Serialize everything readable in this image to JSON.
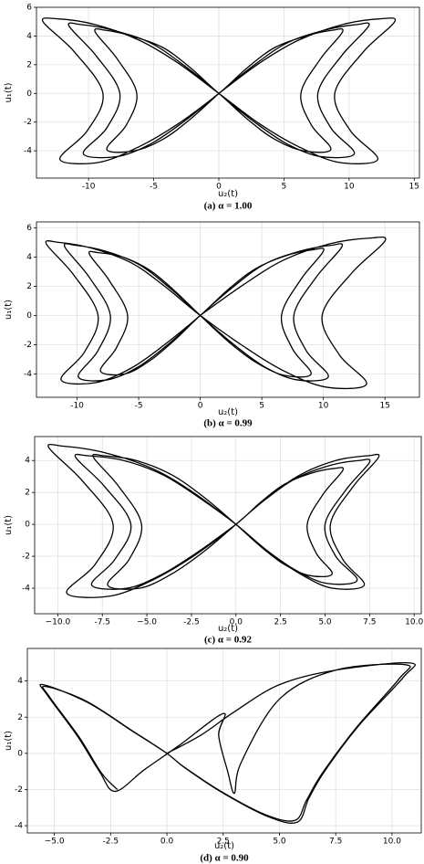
{
  "chart_data": [
    {
      "type": "line",
      "xlabel": "u₂(t)",
      "ylabel": "u₁(t)",
      "caption": "(a) α = 1.00",
      "color": "#000000",
      "grid": true,
      "xlim": [
        -14,
        15.4
      ],
      "ylim": [
        -5.9,
        6.0
      ],
      "xticks": [
        -10,
        -5,
        0,
        5,
        10,
        15
      ],
      "yticks": [
        -4,
        -2,
        0,
        2,
        4,
        6
      ],
      "x": [
        0,
        3.1,
        6.1,
        9.5,
        12.4,
        13.5,
        11.1,
        8.9,
        10.1,
        12.2,
        9.2,
        6.1,
        3.1,
        0,
        -3.1,
        -6.1,
        -9.5,
        -12.4,
        -13.5,
        -11.1,
        -8.9,
        -10.1,
        -12.2,
        -9.2,
        -6.1,
        -3.1,
        0,
        2.2,
        4.3,
        6.7,
        8.7,
        9.5,
        7.8,
        6.3,
        7.1,
        8.6,
        6.5,
        4.3,
        2.2,
        0,
        -2.6,
        -5.2,
        -8.1,
        -10.6,
        -11.5,
        -9.4,
        -7.6,
        -8.6,
        -10.4,
        -7.8,
        -5.2,
        -2.6,
        0,
        2.6,
        5.2,
        8.1,
        10.6,
        11.5,
        9.4,
        7.6,
        8.6,
        10.4,
        7.8,
        5.2,
        2.6,
        0,
        -2.2,
        -4.3,
        -6.7,
        -8.7,
        -9.5,
        -7.8,
        -6.3,
        -7.1,
        -8.6,
        -6.5,
        -4.3,
        -2.2,
        0
      ],
      "values": [
        0,
        2.1,
        3.7,
        4.8,
        5.2,
        5.0,
        2.9,
        0,
        -2.6,
        -4.6,
        -4.8,
        -3.7,
        -2.1,
        0,
        2.1,
        3.7,
        4.8,
        5.2,
        5.0,
        2.9,
        0,
        -2.6,
        -4.6,
        -4.8,
        -3.7,
        -2.1,
        0,
        1.8,
        3.2,
        4.0,
        4.4,
        4.3,
        2.4,
        0,
        -2.2,
        -3.9,
        -4.0,
        -3.2,
        -1.8,
        0,
        1.9,
        3.5,
        4.4,
        4.8,
        4.7,
        2.6,
        0,
        -2.4,
        -4.2,
        -4.4,
        -3.5,
        -1.9,
        0,
        1.9,
        3.5,
        4.4,
        4.8,
        4.7,
        2.6,
        0,
        -2.4,
        -4.2,
        -4.4,
        -3.5,
        -1.9,
        0,
        1.8,
        3.2,
        4.0,
        4.4,
        4.3,
        2.4,
        0,
        -2.2,
        -3.9,
        -4.0,
        -3.2,
        -1.8,
        0
      ]
    },
    {
      "type": "line",
      "xlabel": "u₂(t)",
      "ylabel": "u₁(t)",
      "caption": "(b) α = 0.99",
      "color": "#000000",
      "grid": true,
      "xlim": [
        -13.3,
        17.8
      ],
      "ylim": [
        -5.6,
        6.4
      ],
      "xticks": [
        -10,
        -5,
        0,
        5,
        10,
        15
      ],
      "yticks": [
        -4,
        -2,
        0,
        2,
        4,
        6
      ],
      "x": [
        0,
        3.5,
        6.8,
        10.5,
        13.8,
        15,
        12.3,
        9.9,
        11.3,
        13.5,
        10.2,
        6.8,
        3.5,
        0,
        -2.9,
        -5.6,
        -8.8,
        -11.5,
        -12.5,
        -10.3,
        -8.3,
        -9.4,
        -11.3,
        -8.5,
        -5.6,
        -2.9,
        0,
        2.3,
        4.5,
        7.0,
        9.2,
        10,
        8.2,
        6.6,
        7.5,
        9,
        6.8,
        4.5,
        2.3,
        0,
        -2.1,
        -4.1,
        -6.3,
        -8.3,
        -9,
        -7.4,
        -5.9,
        -6.8,
        -8.1,
        -6.1,
        -4.1,
        -2.1,
        0,
        2.6,
        5.2,
        8.1,
        10.6,
        11.5,
        9.4,
        7.6,
        8.6,
        10.4,
        7.8,
        5.2,
        2.6,
        0,
        -2.5,
        -5.0,
        -7.7,
        -10.1,
        -11,
        -9.0,
        -7.3,
        -8.3,
        -9.9,
        -7.5,
        -5.0,
        -2.5,
        0
      ],
      "values": [
        0,
        2.1,
        3.8,
        4.9,
        5.3,
        5.1,
        2.9,
        0,
        -2.7,
        -4.7,
        -4.9,
        -3.8,
        -2.1,
        0,
        2.0,
        3.6,
        4.6,
        5.0,
        4.9,
        2.8,
        0,
        -2.5,
        -4.4,
        -4.6,
        -3.6,
        -2.0,
        0,
        1.8,
        3.2,
        4.1,
        4.5,
        4.4,
        2.5,
        0,
        -2.3,
        -4.0,
        -4.1,
        -3.2,
        -1.8,
        0,
        1.7,
        3.1,
        4.0,
        4.3,
        4.2,
        2.4,
        0,
        -2.2,
        -3.8,
        -4.0,
        -3.1,
        -1.7,
        0,
        1.9,
        3.5,
        4.4,
        4.8,
        4.7,
        2.6,
        0,
        -2.4,
        -4.2,
        -4.4,
        -3.5,
        -1.9,
        0,
        1.9,
        3.5,
        4.4,
        4.8,
        4.7,
        2.6,
        0,
        -2.4,
        -4.2,
        -4.4,
        -3.5,
        -1.9,
        0
      ]
    },
    {
      "type": "line",
      "xlabel": "u₂(t)",
      "ylabel": "u₁(t)",
      "caption": "(c) α = 0.92",
      "color": "#000000",
      "grid": true,
      "xlim": [
        -11.3,
        10.4
      ],
      "ylim": [
        -5.6,
        5.5
      ],
      "xticks": [
        {
          "value": -10,
          "label": "−10.0"
        },
        -7.5,
        {
          "value": -5,
          "label": "−5.0"
        },
        -2.5,
        {
          "value": 0,
          "label": "0.0"
        },
        2.5,
        {
          "value": 5,
          "label": "5.0"
        },
        7.5,
        {
          "value": 10,
          "label": "10.0"
        }
      ],
      "yticks": [
        -4,
        -2,
        0,
        2,
        4
      ],
      "x": [
        0,
        1.7,
        3.4,
        5.3,
        6.9,
        7.5,
        6.2,
        5.0,
        5.6,
        6.8,
        5.1,
        3.4,
        1.7,
        0,
        -2.4,
        -4.7,
        -7.4,
        -9.7,
        -10.5,
        -8.6,
        -6.9,
        -7.9,
        -9.5,
        -7.1,
        -4.7,
        -2.4,
        0,
        1.4,
        2.7,
        4.2,
        5.5,
        6,
        4.9,
        4.0,
        4.5,
        5.4,
        4.1,
        2.7,
        1.4,
        0,
        -1.8,
        -3.6,
        -5.6,
        -7.4,
        -8,
        -6.6,
        -5.3,
        -6,
        -7.2,
        -5.4,
        -3.6,
        -1.8,
        0,
        1.8,
        3.6,
        5.6,
        7.4,
        8,
        6.6,
        5.3,
        6,
        7.2,
        5.4,
        3.6,
        1.8,
        0,
        -2.1,
        -4.1,
        -6.3,
        -8.3,
        -9,
        -7.4,
        -5.9,
        -6.8,
        -8.1,
        -6.1,
        -4.1,
        -2.1,
        0
      ],
      "values": [
        0,
        1.6,
        2.9,
        3.7,
        4.0,
        3.9,
        2.2,
        0,
        -2.0,
        -3.5,
        -3.7,
        -2.9,
        -1.6,
        0,
        2.0,
        3.5,
        4.5,
        4.9,
        4.8,
        2.7,
        0,
        -2.5,
        -4.3,
        -4.5,
        -3.5,
        -2.0,
        0,
        1.4,
        2.5,
        3.2,
        3.5,
        3.4,
        1.9,
        0,
        -1.8,
        -3.1,
        -3.2,
        -2.5,
        -1.4,
        0,
        1.7,
        3.1,
        4.0,
        4.3,
        4.2,
        2.4,
        0,
        -2.2,
        -3.8,
        -4.0,
        -3.1,
        -1.7,
        0,
        1.7,
        3.1,
        4.0,
        4.3,
        4.2,
        2.4,
        0,
        -2.2,
        -3.8,
        -4.0,
        -3.1,
        -1.7,
        0,
        1.7,
        3.1,
        4.0,
        4.3,
        4.2,
        2.4,
        0,
        -2.2,
        -3.8,
        -4.0,
        -3.1,
        -1.7,
        0
      ]
    },
    {
      "type": "line",
      "xlabel": "u₂(t)",
      "ylabel": "u₁(t)",
      "caption": "(d) α = 0.90",
      "color": "#000000",
      "grid": true,
      "xlim": [
        -6.2,
        11.3
      ],
      "ylim": [
        -4.4,
        5.8
      ],
      "xticks": [
        {
          "value": -5,
          "label": "−5.0"
        },
        -2.5,
        {
          "value": 0,
          "label": "0.0"
        },
        2.5,
        {
          "value": 5,
          "label": "5.0"
        },
        7.5,
        {
          "value": 10,
          "label": "10.0"
        }
      ],
      "yticks": [
        -4,
        -2,
        0,
        2,
        4
      ],
      "x": [
        0,
        1.5,
        3,
        5,
        7.5,
        10.8,
        10.5,
        8.5,
        7,
        6.3,
        5.8,
        4.5,
        2.5,
        0.8,
        0,
        -1.5,
        -3.5,
        -5.5,
        -5.3,
        -4,
        -3,
        -2.3,
        -1,
        0.5,
        2.5,
        2.3,
        2.7,
        3,
        3.3,
        5,
        7.5,
        10.6,
        10.3,
        8.4,
        6.9,
        6.2,
        5.7,
        4.4,
        2.4,
        0.7,
        0,
        -1.6,
        -3.6,
        -5.4,
        -5.2,
        -3.9,
        -2.9,
        -2.2
      ],
      "values": [
        0,
        1,
        2.3,
        3.8,
        4.6,
        5,
        4.2,
        1.5,
        -1,
        -2.5,
        -3.8,
        -3.5,
        -2.2,
        -0.8,
        0,
        1.2,
        2.8,
        3.8,
        3.2,
        1,
        -1,
        -2.1,
        -0.9,
        0.4,
        2.2,
        1,
        -1,
        -2.2,
        -0.5,
        3,
        4.6,
        4.9,
        4.1,
        1.4,
        -1.1,
        -2.6,
        -3.7,
        -3.4,
        -2.1,
        -0.7,
        0,
        1.3,
        2.9,
        3.7,
        3.1,
        0.9,
        -1.1,
        -2.0
      ]
    }
  ]
}
